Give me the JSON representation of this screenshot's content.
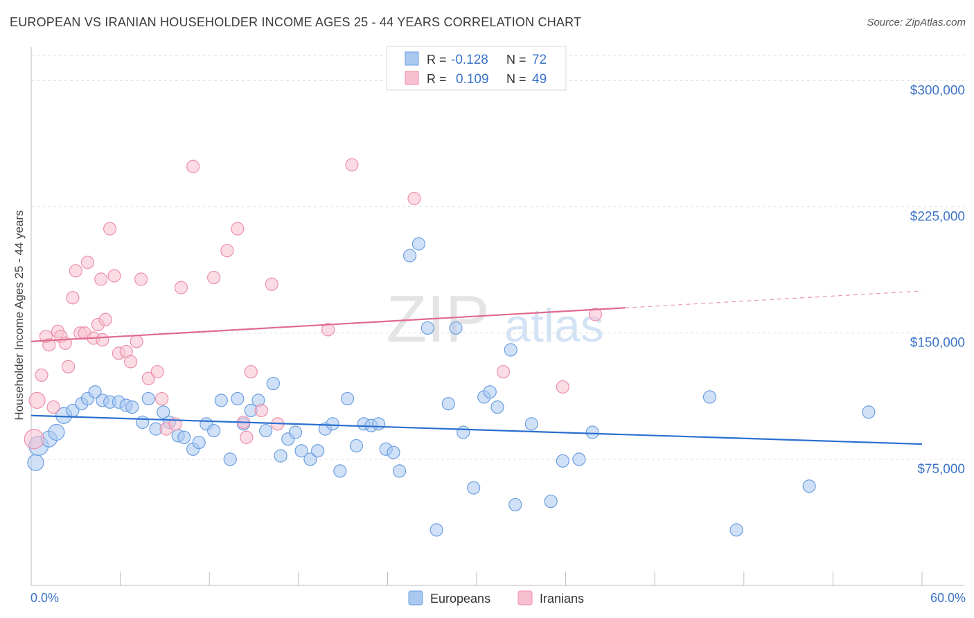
{
  "header": {
    "title": "EUROPEAN VS IRANIAN HOUSEHOLDER INCOME AGES 25 - 44 YEARS CORRELATION CHART",
    "source": "Source: ZipAtlas.com"
  },
  "legend_box": {
    "rows": [
      {
        "r_label": "R =",
        "r_value": "-0.128",
        "n_label": "N =",
        "n_value": "72"
      },
      {
        "r_label": "R =",
        "r_value": "0.109",
        "n_label": "N =",
        "n_value": "49"
      }
    ]
  },
  "watermark": {
    "part1": "ZIP",
    "part2": "atlas"
  },
  "colors": {
    "europeans_fill": "#aac8f0",
    "europeans_stroke": "#6b9ee0",
    "europeans_line": "#2a6fcf",
    "iranians_fill": "#f8bfd0",
    "iranians_stroke": "#ec8fab",
    "iranians_line": "#e06a8e",
    "axis_text": "#3b73c8",
    "grid": "#dddddd"
  },
  "chart_data": {
    "type": "scatter",
    "title": "EUROPEAN VS IRANIAN HOUSEHOLDER INCOME AGES 25 - 44 YEARS CORRELATION CHART",
    "xlabel": "",
    "ylabel": "Householder Income Ages 25 - 44 years",
    "xlim": [
      0,
      60
    ],
    "ylim": [
      0,
      315000
    ],
    "x_tick_labels": [
      "0.0%",
      "60.0%"
    ],
    "y_ticks": [
      75000,
      150000,
      225000,
      300000
    ],
    "y_tick_labels": [
      "$75,000",
      "$150,000",
      "$225,000",
      "$300,000"
    ],
    "grid": true,
    "legend": [
      "Europeans",
      "Iranians"
    ],
    "legend_position": "bottom",
    "series": [
      {
        "name": "Europeans",
        "r": -0.128,
        "n": 72,
        "trend": {
          "x0": 0,
          "y0": 101000,
          "x1": 60,
          "y1": 84000,
          "solid_to": 60
        },
        "points": [
          {
            "x": 0.3,
            "y": 73000,
            "s": 2
          },
          {
            "x": 0.5,
            "y": 83000,
            "s": 3
          },
          {
            "x": 1.2,
            "y": 87000,
            "s": 2
          },
          {
            "x": 1.7,
            "y": 91000,
            "s": 2
          },
          {
            "x": 2.2,
            "y": 101000,
            "s": 2
          },
          {
            "x": 2.8,
            "y": 104000,
            "s": 1
          },
          {
            "x": 3.4,
            "y": 108000,
            "s": 1
          },
          {
            "x": 3.8,
            "y": 111000,
            "s": 1
          },
          {
            "x": 4.3,
            "y": 115000,
            "s": 1
          },
          {
            "x": 4.8,
            "y": 110000,
            "s": 1
          },
          {
            "x": 5.3,
            "y": 109000,
            "s": 1
          },
          {
            "x": 5.9,
            "y": 109000,
            "s": 1
          },
          {
            "x": 6.4,
            "y": 107000,
            "s": 1
          },
          {
            "x": 6.8,
            "y": 106000,
            "s": 1
          },
          {
            "x": 7.5,
            "y": 97000,
            "s": 1
          },
          {
            "x": 7.9,
            "y": 111000,
            "s": 1
          },
          {
            "x": 8.4,
            "y": 93000,
            "s": 1
          },
          {
            "x": 8.9,
            "y": 103000,
            "s": 1
          },
          {
            "x": 9.3,
            "y": 97000,
            "s": 1
          },
          {
            "x": 9.9,
            "y": 89000,
            "s": 1
          },
          {
            "x": 10.3,
            "y": 88000,
            "s": 1
          },
          {
            "x": 10.9,
            "y": 81000,
            "s": 1
          },
          {
            "x": 11.3,
            "y": 85000,
            "s": 1
          },
          {
            "x": 11.8,
            "y": 96000,
            "s": 1
          },
          {
            "x": 12.3,
            "y": 92000,
            "s": 1
          },
          {
            "x": 12.8,
            "y": 110000,
            "s": 1
          },
          {
            "x": 13.4,
            "y": 75000,
            "s": 1
          },
          {
            "x": 13.9,
            "y": 111000,
            "s": 1
          },
          {
            "x": 14.3,
            "y": 96000,
            "s": 1
          },
          {
            "x": 14.8,
            "y": 104000,
            "s": 1
          },
          {
            "x": 15.3,
            "y": 110000,
            "s": 1
          },
          {
            "x": 15.8,
            "y": 92000,
            "s": 1
          },
          {
            "x": 16.3,
            "y": 120000,
            "s": 1
          },
          {
            "x": 16.8,
            "y": 77000,
            "s": 1
          },
          {
            "x": 17.3,
            "y": 87000,
            "s": 1
          },
          {
            "x": 17.8,
            "y": 91000,
            "s": 1
          },
          {
            "x": 18.2,
            "y": 80000,
            "s": 1
          },
          {
            "x": 18.8,
            "y": 75000,
            "s": 1
          },
          {
            "x": 19.3,
            "y": 80000,
            "s": 1
          },
          {
            "x": 19.8,
            "y": 93000,
            "s": 1
          },
          {
            "x": 20.3,
            "y": 96000,
            "s": 1
          },
          {
            "x": 20.8,
            "y": 68000,
            "s": 1
          },
          {
            "x": 21.3,
            "y": 111000,
            "s": 1
          },
          {
            "x": 21.9,
            "y": 83000,
            "s": 1
          },
          {
            "x": 22.4,
            "y": 96000,
            "s": 1
          },
          {
            "x": 22.9,
            "y": 95000,
            "s": 1
          },
          {
            "x": 23.4,
            "y": 96000,
            "s": 1
          },
          {
            "x": 23.9,
            "y": 81000,
            "s": 1
          },
          {
            "x": 24.4,
            "y": 79000,
            "s": 1
          },
          {
            "x": 24.8,
            "y": 68000,
            "s": 1
          },
          {
            "x": 25.5,
            "y": 196000,
            "s": 1
          },
          {
            "x": 26.1,
            "y": 203000,
            "s": 1
          },
          {
            "x": 26.7,
            "y": 153000,
            "s": 1
          },
          {
            "x": 27.3,
            "y": 33000,
            "s": 1
          },
          {
            "x": 28.1,
            "y": 108000,
            "s": 1
          },
          {
            "x": 28.6,
            "y": 153000,
            "s": 1
          },
          {
            "x": 29.1,
            "y": 91000,
            "s": 1
          },
          {
            "x": 29.8,
            "y": 58000,
            "s": 1
          },
          {
            "x": 30.5,
            "y": 112000,
            "s": 1
          },
          {
            "x": 30.9,
            "y": 115000,
            "s": 1
          },
          {
            "x": 31.4,
            "y": 106000,
            "s": 1
          },
          {
            "x": 32.3,
            "y": 140000,
            "s": 1
          },
          {
            "x": 32.6,
            "y": 48000,
            "s": 1
          },
          {
            "x": 33.7,
            "y": 96000,
            "s": 1
          },
          {
            "x": 35.0,
            "y": 50000,
            "s": 1
          },
          {
            "x": 35.8,
            "y": 74000,
            "s": 1
          },
          {
            "x": 36.9,
            "y": 75000,
            "s": 1
          },
          {
            "x": 37.8,
            "y": 91000,
            "s": 1
          },
          {
            "x": 45.7,
            "y": 112000,
            "s": 1
          },
          {
            "x": 47.5,
            "y": 33000,
            "s": 1
          },
          {
            "x": 52.4,
            "y": 59000,
            "s": 1
          },
          {
            "x": 56.4,
            "y": 103000,
            "s": 1
          }
        ]
      },
      {
        "name": "Iranians",
        "r": 0.109,
        "n": 49,
        "trend": {
          "x0": 0,
          "y0": 145000,
          "x1": 60,
          "y1": 175000,
          "solid_to": 40
        },
        "points": [
          {
            "x": 0.2,
            "y": 87000,
            "s": 3
          },
          {
            "x": 0.4,
            "y": 110000,
            "s": 2
          },
          {
            "x": 0.7,
            "y": 125000,
            "s": 1
          },
          {
            "x": 1.0,
            "y": 148000,
            "s": 1
          },
          {
            "x": 1.2,
            "y": 143000,
            "s": 1
          },
          {
            "x": 1.5,
            "y": 106000,
            "s": 1
          },
          {
            "x": 1.8,
            "y": 151000,
            "s": 1
          },
          {
            "x": 2.0,
            "y": 148000,
            "s": 1
          },
          {
            "x": 2.3,
            "y": 144000,
            "s": 1
          },
          {
            "x": 2.5,
            "y": 130000,
            "s": 1
          },
          {
            "x": 2.8,
            "y": 171000,
            "s": 1
          },
          {
            "x": 3.0,
            "y": 187000,
            "s": 1
          },
          {
            "x": 3.3,
            "y": 150000,
            "s": 1
          },
          {
            "x": 3.6,
            "y": 150000,
            "s": 1
          },
          {
            "x": 3.8,
            "y": 192000,
            "s": 1
          },
          {
            "x": 4.2,
            "y": 147000,
            "s": 1
          },
          {
            "x": 4.5,
            "y": 155000,
            "s": 1
          },
          {
            "x": 4.7,
            "y": 182000,
            "s": 1
          },
          {
            "x": 4.8,
            "y": 146000,
            "s": 1
          },
          {
            "x": 5.0,
            "y": 158000,
            "s": 1
          },
          {
            "x": 5.3,
            "y": 212000,
            "s": 1
          },
          {
            "x": 5.6,
            "y": 184000,
            "s": 1
          },
          {
            "x": 5.9,
            "y": 138000,
            "s": 1
          },
          {
            "x": 6.4,
            "y": 139000,
            "s": 1
          },
          {
            "x": 6.7,
            "y": 133000,
            "s": 1
          },
          {
            "x": 7.1,
            "y": 145000,
            "s": 1
          },
          {
            "x": 7.4,
            "y": 182000,
            "s": 1
          },
          {
            "x": 7.9,
            "y": 123000,
            "s": 1
          },
          {
            "x": 8.5,
            "y": 127000,
            "s": 1
          },
          {
            "x": 8.8,
            "y": 111000,
            "s": 1
          },
          {
            "x": 9.1,
            "y": 93000,
            "s": 1
          },
          {
            "x": 9.7,
            "y": 96000,
            "s": 1
          },
          {
            "x": 10.1,
            "y": 177000,
            "s": 1
          },
          {
            "x": 10.9,
            "y": 249000,
            "s": 1
          },
          {
            "x": 12.3,
            "y": 183000,
            "s": 1
          },
          {
            "x": 13.2,
            "y": 199000,
            "s": 1
          },
          {
            "x": 13.9,
            "y": 212000,
            "s": 1
          },
          {
            "x": 14.3,
            "y": 97000,
            "s": 1
          },
          {
            "x": 14.5,
            "y": 88000,
            "s": 1
          },
          {
            "x": 14.8,
            "y": 127000,
            "s": 1
          },
          {
            "x": 15.5,
            "y": 104000,
            "s": 1
          },
          {
            "x": 16.2,
            "y": 179000,
            "s": 1
          },
          {
            "x": 16.6,
            "y": 96000,
            "s": 1
          },
          {
            "x": 20.0,
            "y": 152000,
            "s": 1
          },
          {
            "x": 21.6,
            "y": 250000,
            "s": 1
          },
          {
            "x": 25.8,
            "y": 230000,
            "s": 1
          },
          {
            "x": 31.8,
            "y": 127000,
            "s": 1
          },
          {
            "x": 35.8,
            "y": 118000,
            "s": 1
          },
          {
            "x": 38.0,
            "y": 161000,
            "s": 1
          }
        ]
      }
    ]
  }
}
